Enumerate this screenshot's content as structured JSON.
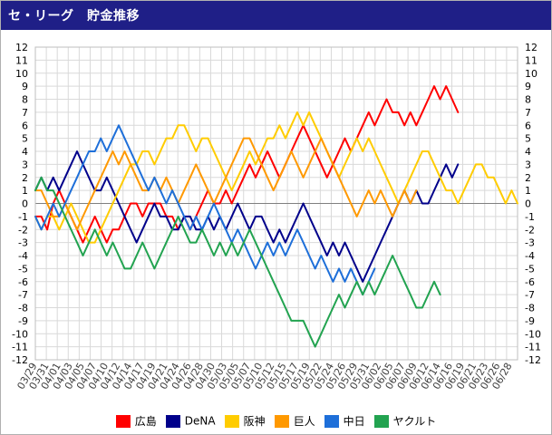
{
  "header": {
    "title": "セ・リーグ　貯金推移"
  },
  "chart_data": {
    "type": "line",
    "ylim": [
      -12,
      12
    ],
    "y_ticks": [
      12,
      11,
      10,
      9,
      8,
      7,
      6,
      5,
      4,
      3,
      2,
      1,
      0,
      -1,
      -2,
      -3,
      -4,
      -5,
      -6,
      -7,
      -8,
      -9,
      -10,
      -11,
      -12
    ],
    "grid": true,
    "legend_position": "bottom",
    "x_tick_labels": [
      "03/29",
      "03/31",
      "04/01",
      "04/03",
      "04/05",
      "04/07",
      "04/10",
      "04/12",
      "04/14",
      "04/17",
      "04/19",
      "04/21",
      "04/24",
      "04/26",
      "04/28",
      "04/30",
      "05/03",
      "05/05",
      "05/07",
      "05/10",
      "05/12",
      "05/15",
      "05/17",
      "05/19",
      "05/22",
      "05/24",
      "05/26",
      "05/29",
      "05/31",
      "06/02",
      "06/05",
      "06/07",
      "06/09",
      "06/12",
      "06/14",
      "06/16",
      "06/19",
      "06/21",
      "06/23",
      "06/26",
      "06/28"
    ],
    "series": [
      {
        "name": "広島",
        "color": "#ff0000",
        "values": [
          -1,
          -1,
          -2,
          0,
          1,
          0,
          -1,
          -2,
          -3,
          -2,
          -1,
          -2,
          -3,
          -2,
          -2,
          -1,
          0,
          0,
          -1,
          0,
          0,
          0,
          -1,
          -1,
          -2,
          -1,
          -2,
          -1,
          0,
          1,
          0,
          0,
          1,
          0,
          1,
          2,
          3,
          2,
          3,
          4,
          3,
          2,
          3,
          4,
          5,
          6,
          5,
          4,
          3,
          2,
          3,
          4,
          5,
          4,
          5,
          6,
          7,
          6,
          7,
          8,
          7,
          7,
          6,
          7,
          6,
          7,
          8,
          9,
          8,
          9,
          8,
          7
        ]
      },
      {
        "name": "DeNA",
        "color": "#00008b",
        "values": [
          1,
          2,
          1,
          2,
          1,
          2,
          3,
          4,
          3,
          2,
          1,
          1,
          2,
          1,
          0,
          -1,
          -2,
          -3,
          -2,
          -1,
          0,
          -1,
          -1,
          -2,
          -2,
          -1,
          -1,
          -2,
          -2,
          -1,
          -2,
          -1,
          -2,
          -1,
          0,
          -1,
          -2,
          -1,
          -1,
          -2,
          -3,
          -2,
          -3,
          -2,
          -1,
          0,
          -1,
          -2,
          -3,
          -4,
          -3,
          -4,
          -3,
          -4,
          -5,
          -6,
          -5,
          -4,
          -3,
          -2,
          -1,
          0,
          1,
          0,
          1,
          0,
          0,
          1,
          2,
          3,
          2,
          3
        ]
      },
      {
        "name": "阪神",
        "color": "#ffcc00",
        "values": [
          -1,
          -2,
          -1,
          -1,
          -2,
          -1,
          0,
          -1,
          -2,
          -3,
          -3,
          -2,
          -1,
          0,
          1,
          2,
          3,
          3,
          4,
          4,
          3,
          4,
          5,
          5,
          6,
          6,
          5,
          4,
          5,
          5,
          4,
          3,
          2,
          1,
          2,
          3,
          4,
          3,
          4,
          5,
          5,
          6,
          5,
          6,
          7,
          6,
          7,
          6,
          5,
          4,
          3,
          2,
          3,
          4,
          5,
          4,
          5,
          4,
          3,
          2,
          1,
          0,
          1,
          2,
          3,
          4,
          4,
          3,
          2,
          1,
          1,
          0,
          1,
          2,
          3,
          3,
          2,
          2,
          1,
          0,
          1,
          0
        ]
      },
      {
        "name": "巨人",
        "color": "#ff9900",
        "values": [
          1,
          1,
          0,
          -1,
          -1,
          0,
          -1,
          -2,
          -1,
          0,
          1,
          2,
          3,
          4,
          3,
          4,
          3,
          2,
          1,
          1,
          2,
          1,
          2,
          1,
          0,
          1,
          2,
          3,
          2,
          1,
          0,
          1,
          2,
          3,
          4,
          5,
          5,
          4,
          3,
          2,
          1,
          2,
          3,
          4,
          3,
          2,
          3,
          4,
          5,
          4,
          3,
          2,
          1,
          0,
          -1,
          0,
          1,
          0,
          1,
          0,
          -1,
          0,
          1,
          0,
          1
        ]
      },
      {
        "name": "中日",
        "color": "#1e6fd9",
        "values": [
          -1,
          -2,
          -1,
          0,
          -1,
          0,
          1,
          2,
          3,
          4,
          4,
          5,
          4,
          5,
          6,
          5,
          4,
          3,
          2,
          1,
          2,
          1,
          0,
          1,
          0,
          -1,
          -2,
          -1,
          -2,
          -1,
          0,
          -1,
          -2,
          -3,
          -2,
          -3,
          -4,
          -5,
          -4,
          -3,
          -4,
          -3,
          -4,
          -3,
          -2,
          -3,
          -4,
          -5,
          -4,
          -5,
          -6,
          -5,
          -6,
          -5,
          -6,
          -7,
          -6,
          -5
        ]
      },
      {
        "name": "ヤクルト",
        "color": "#22a350",
        "values": [
          1,
          2,
          1,
          1,
          0,
          -1,
          -2,
          -3,
          -4,
          -3,
          -2,
          -3,
          -4,
          -3,
          -4,
          -5,
          -5,
          -4,
          -3,
          -4,
          -5,
          -4,
          -3,
          -2,
          -1,
          -2,
          -3,
          -3,
          -2,
          -3,
          -4,
          -3,
          -4,
          -3,
          -4,
          -3,
          -2,
          -3,
          -4,
          -5,
          -6,
          -7,
          -8,
          -9,
          -9,
          -9,
          -10,
          -11,
          -10,
          -9,
          -8,
          -7,
          -8,
          -7,
          -6,
          -7,
          -6,
          -7,
          -6,
          -5,
          -4,
          -5,
          -6,
          -7,
          -8,
          -8,
          -7,
          -6,
          -7
        ]
      }
    ]
  }
}
